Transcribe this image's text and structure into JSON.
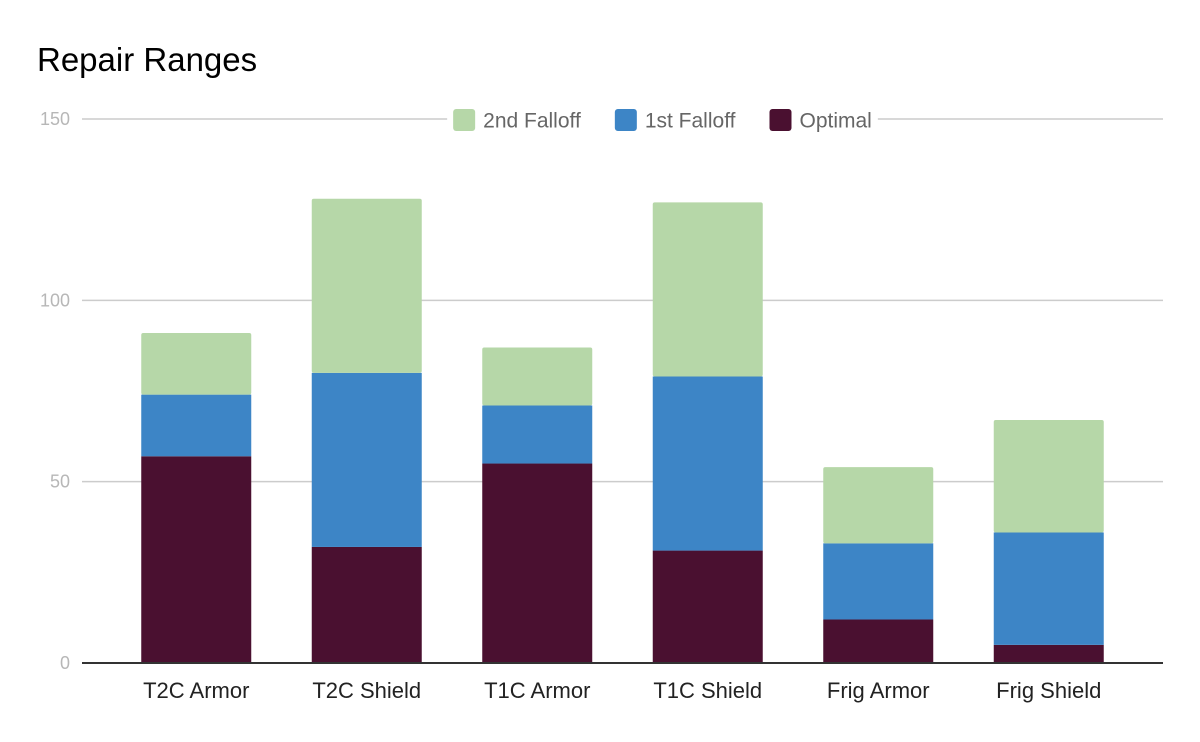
{
  "chart_data": {
    "type": "bar",
    "stacked": true,
    "title": "Repair Ranges",
    "xlabel": "",
    "ylabel": "",
    "ylim": [
      0,
      150
    ],
    "yticks": [
      "0",
      "50",
      "100",
      "150"
    ],
    "grid": true,
    "legend_position": "top-center",
    "categories": [
      "T2C Armor",
      "T2C Shield",
      "T1C Armor",
      "T1C Shield",
      "Frig Armor",
      "Frig Shield"
    ],
    "series": [
      {
        "name": "Optimal",
        "color": "#4a1030",
        "values": [
          57,
          32,
          55,
          31,
          12,
          5
        ]
      },
      {
        "name": "1st Falloff",
        "color": "#3d85c6",
        "values": [
          17,
          48,
          16,
          48,
          21,
          31
        ]
      },
      {
        "name": "2nd Falloff",
        "color": "#b6d7a8",
        "values": [
          17,
          48,
          16,
          48,
          21,
          31
        ]
      }
    ],
    "legend_order": [
      "2nd Falloff",
      "1st Falloff",
      "Optimal"
    ]
  }
}
